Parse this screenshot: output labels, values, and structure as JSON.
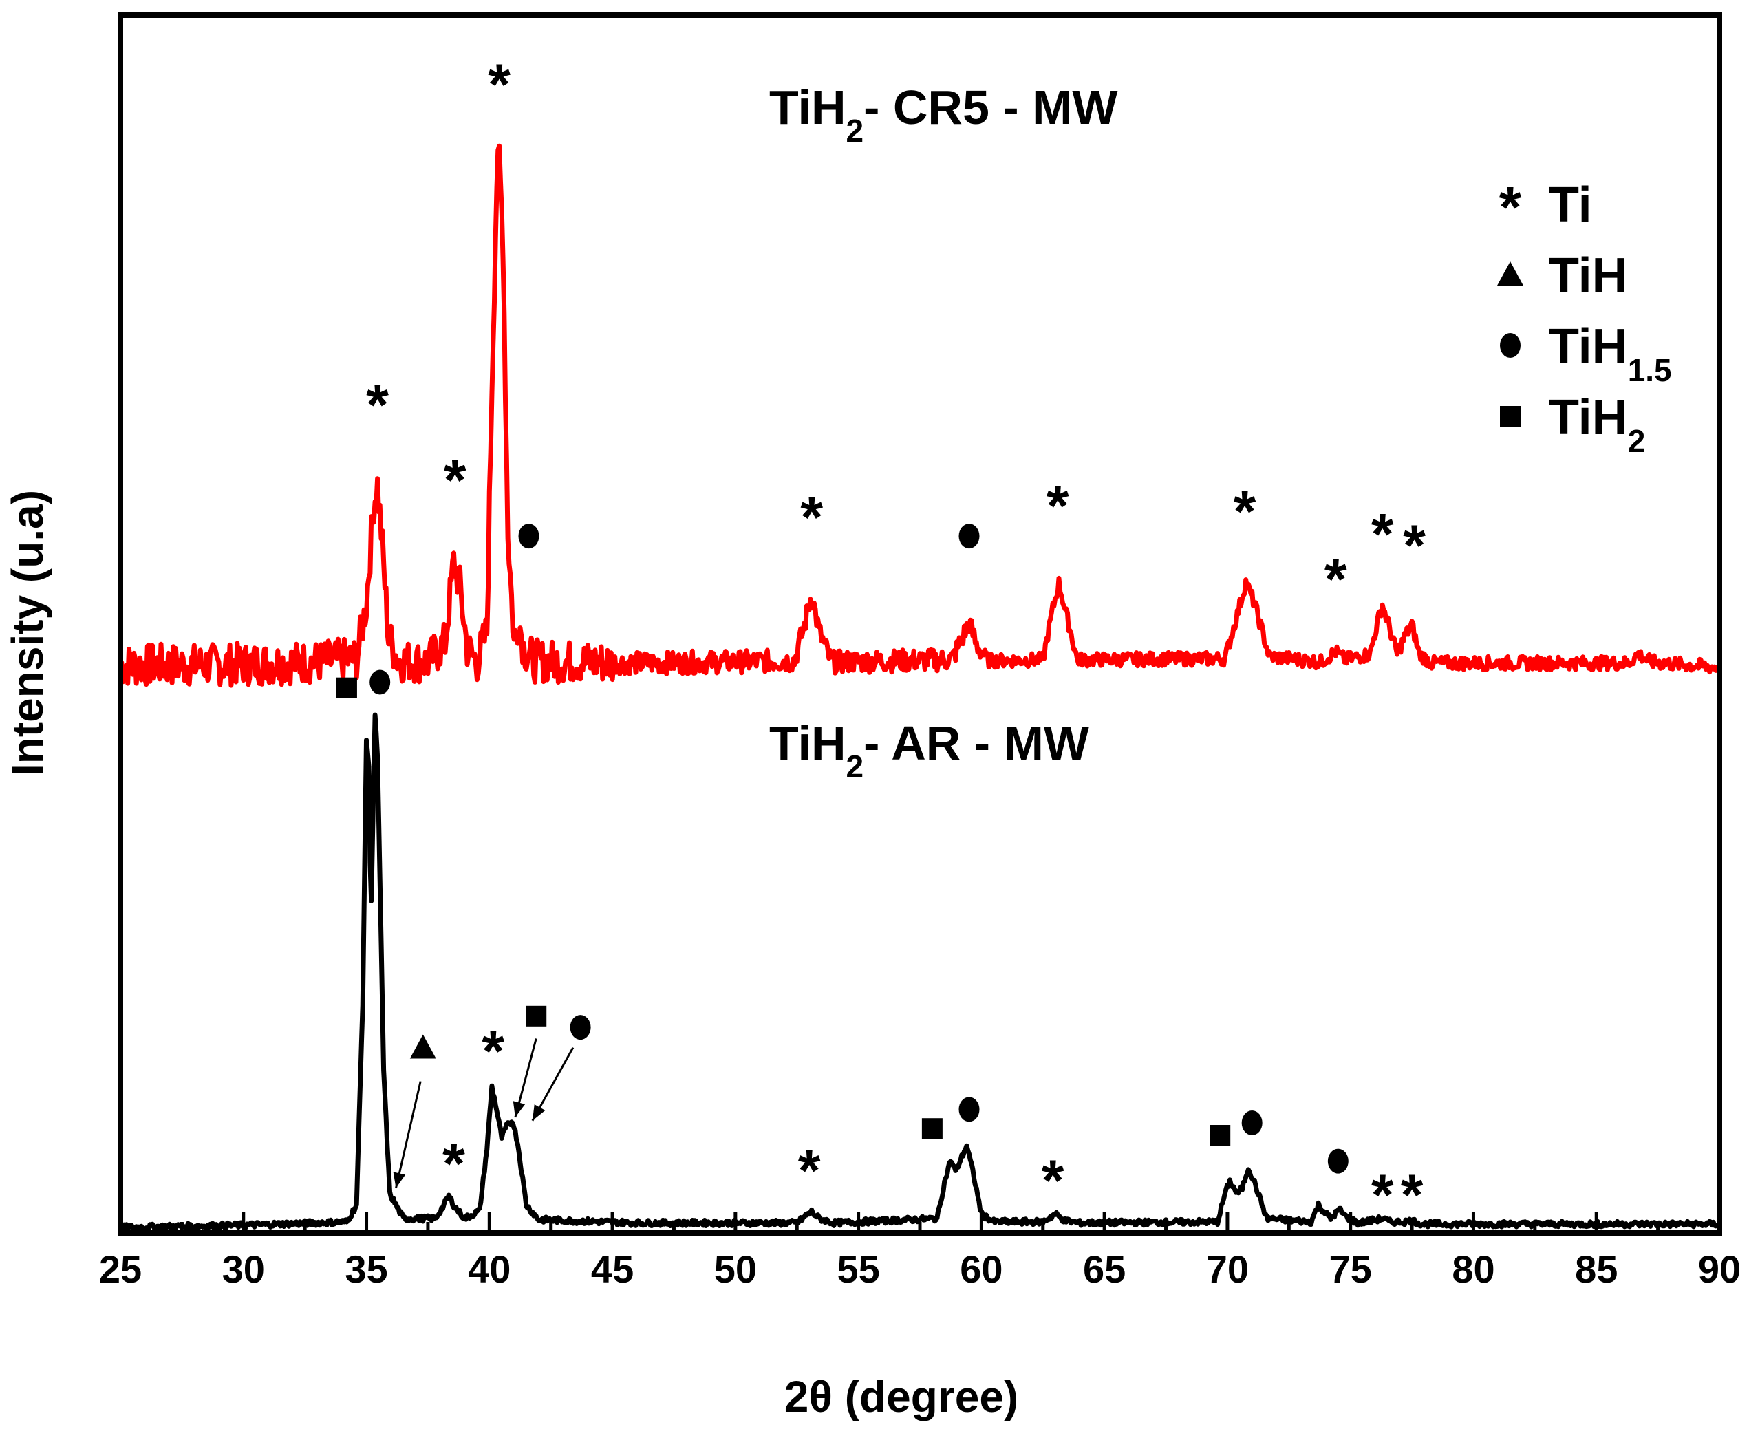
{
  "chart_data": {
    "type": "line",
    "title": "",
    "xlabel": "2θ (degree)",
    "ylabel": "Intensity (u.a)",
    "xlim": [
      25,
      90
    ],
    "ylim": [
      0,
      100
    ],
    "xticks": [
      "25",
      "30",
      "35",
      "40",
      "45",
      "50",
      "55",
      "60",
      "65",
      "70",
      "75",
      "80",
      "85",
      "90"
    ],
    "yticks_visible": false,
    "series": [
      {
        "name": "TiH2- CR5 - MW",
        "label_main": "TiH",
        "label_sub": "2",
        "label_rest": "- CR5 - MW",
        "color": "#ff0000",
        "noisy": true,
        "points": [
          [
            25,
            50.0
          ],
          [
            30,
            50.1
          ],
          [
            33,
            50.3
          ],
          [
            34.6,
            50.6
          ],
          [
            35.0,
            55.5
          ],
          [
            35.3,
            64.5
          ],
          [
            35.45,
            66.0
          ],
          [
            35.6,
            62.0
          ],
          [
            35.9,
            52.5
          ],
          [
            36.3,
            50.4
          ],
          [
            37.5,
            50.3
          ],
          [
            38.2,
            52.0
          ],
          [
            38.55,
            59.2
          ],
          [
            38.8,
            57.0
          ],
          [
            39.1,
            51.5
          ],
          [
            39.5,
            50.3
          ],
          [
            39.9,
            53.0
          ],
          [
            40.1,
            75.0
          ],
          [
            40.3,
            93.0
          ],
          [
            40.4,
            95.0
          ],
          [
            40.55,
            88.0
          ],
          [
            40.75,
            62.0
          ],
          [
            41.0,
            52.0
          ],
          [
            41.2,
            54.0
          ],
          [
            41.4,
            51.5
          ],
          [
            41.8,
            50.4
          ],
          [
            46,
            50.2
          ],
          [
            52.4,
            50.4
          ],
          [
            52.8,
            53.5
          ],
          [
            53.1,
            56.4
          ],
          [
            53.4,
            53.0
          ],
          [
            53.9,
            50.3
          ],
          [
            58.8,
            50.5
          ],
          [
            59.2,
            52.3
          ],
          [
            59.5,
            53.8
          ],
          [
            59.8,
            51.8
          ],
          [
            60.3,
            50.4
          ],
          [
            62.5,
            50.5
          ],
          [
            62.9,
            55.0
          ],
          [
            63.15,
            57.3
          ],
          [
            63.4,
            55.0
          ],
          [
            63.9,
            50.5
          ],
          [
            69.9,
            50.6
          ],
          [
            70.4,
            54.5
          ],
          [
            70.75,
            57.4
          ],
          [
            71.1,
            55.5
          ],
          [
            71.7,
            50.8
          ],
          [
            73.8,
            50.3
          ],
          [
            74.4,
            51.2
          ],
          [
            74.8,
            50.5
          ],
          [
            75.8,
            51.0
          ],
          [
            76.1,
            53.8
          ],
          [
            76.3,
            55.4
          ],
          [
            76.5,
            54.0
          ],
          [
            76.9,
            51.0
          ],
          [
            77.2,
            52.5
          ],
          [
            77.5,
            53.6
          ],
          [
            77.8,
            51.0
          ],
          [
            78.3,
            50.2
          ],
          [
            86.3,
            50.2
          ],
          [
            86.7,
            51.0
          ],
          [
            87.2,
            50.3
          ],
          [
            90,
            49.8
          ]
        ],
        "markers": [
          {
            "symbol": "star",
            "x": 35.45,
            "y": 73.5
          },
          {
            "symbol": "star",
            "x": 38.6,
            "y": 66.8
          },
          {
            "symbol": "star",
            "x": 40.4,
            "y": 102.0
          },
          {
            "symbol": "circle",
            "x": 41.6,
            "y": 61.5
          },
          {
            "symbol": "star",
            "x": 53.1,
            "y": 63.5
          },
          {
            "symbol": "circle",
            "x": 59.5,
            "y": 61.5
          },
          {
            "symbol": "star",
            "x": 63.1,
            "y": 64.5
          },
          {
            "symbol": "star",
            "x": 70.7,
            "y": 64.0
          },
          {
            "symbol": "star",
            "x": 74.4,
            "y": 58.0
          },
          {
            "symbol": "star",
            "x": 76.3,
            "y": 62.0
          },
          {
            "symbol": "star",
            "x": 77.6,
            "y": 61.0
          }
        ]
      },
      {
        "name": "TiH2- AR - MW",
        "label_main": "TiH",
        "label_sub": "2",
        "label_rest": "- AR - MW",
        "color": "#000000",
        "noisy": false,
        "points": [
          [
            25,
            0.0
          ],
          [
            30,
            0.2
          ],
          [
            34.2,
            0.5
          ],
          [
            34.6,
            2.0
          ],
          [
            34.85,
            20.0
          ],
          [
            35.0,
            43.5
          ],
          [
            35.1,
            41.0
          ],
          [
            35.18,
            27.0
          ],
          [
            35.25,
            35.0
          ],
          [
            35.35,
            45.5
          ],
          [
            35.45,
            42.0
          ],
          [
            35.7,
            14.0
          ],
          [
            35.95,
            3.0
          ],
          [
            36.5,
            0.8
          ],
          [
            37.8,
            0.8
          ],
          [
            38.1,
            1.8
          ],
          [
            38.35,
            2.8
          ],
          [
            38.6,
            1.8
          ],
          [
            39.0,
            0.8
          ],
          [
            39.6,
            1.5
          ],
          [
            39.9,
            7.0
          ],
          [
            40.1,
            12.5
          ],
          [
            40.25,
            11.0
          ],
          [
            40.5,
            8.0
          ],
          [
            40.7,
            9.0
          ],
          [
            40.95,
            9.5
          ],
          [
            41.15,
            7.5
          ],
          [
            41.5,
            2.0
          ],
          [
            42.0,
            0.7
          ],
          [
            46,
            0.4
          ],
          [
            52.5,
            0.4
          ],
          [
            52.9,
            1.1
          ],
          [
            53.1,
            1.4
          ],
          [
            53.4,
            0.8
          ],
          [
            54.0,
            0.4
          ],
          [
            58.2,
            0.8
          ],
          [
            58.5,
            4.0
          ],
          [
            58.75,
            6.0
          ],
          [
            58.95,
            5.0
          ],
          [
            59.15,
            6.0
          ],
          [
            59.4,
            7.3
          ],
          [
            59.65,
            5.0
          ],
          [
            60.0,
            1.2
          ],
          [
            60.5,
            0.5
          ],
          [
            62.5,
            0.5
          ],
          [
            63.0,
            1.2
          ],
          [
            63.4,
            0.6
          ],
          [
            64.0,
            0.4
          ],
          [
            69.6,
            0.5
          ],
          [
            69.9,
            3.0
          ],
          [
            70.1,
            4.1
          ],
          [
            70.4,
            3.0
          ],
          [
            70.6,
            3.5
          ],
          [
            70.85,
            5.3
          ],
          [
            71.1,
            4.0
          ],
          [
            71.6,
            0.8
          ],
          [
            73.4,
            0.5
          ],
          [
            73.7,
            2.0
          ],
          [
            73.85,
            1.6
          ],
          [
            74.2,
            0.8
          ],
          [
            74.55,
            1.6
          ],
          [
            74.85,
            0.9
          ],
          [
            75.3,
            0.4
          ],
          [
            76.1,
            0.7
          ],
          [
            76.3,
            0.8
          ],
          [
            76.6,
            0.5
          ],
          [
            77.2,
            0.5
          ],
          [
            77.5,
            0.6
          ],
          [
            77.9,
            0.3
          ],
          [
            90,
            0.3
          ]
        ],
        "markers": [
          {
            "symbol": "square",
            "x": 34.2,
            "y": 48.0
          },
          {
            "symbol": "circle",
            "x": 35.55,
            "y": 48.5
          },
          {
            "symbol": "triangle",
            "x": 37.3,
            "y": 16.0
          },
          {
            "symbol": "star",
            "x": 38.55,
            "y": 6.0
          },
          {
            "symbol": "star",
            "x": 40.15,
            "y": 16.0
          },
          {
            "symbol": "square",
            "x": 41.9,
            "y": 18.8
          },
          {
            "symbol": "circle",
            "x": 43.7,
            "y": 17.8
          },
          {
            "symbol": "star",
            "x": 53.0,
            "y": 5.4
          },
          {
            "symbol": "square",
            "x": 58.0,
            "y": 8.8
          },
          {
            "symbol": "circle",
            "x": 59.5,
            "y": 10.5
          },
          {
            "symbol": "star",
            "x": 62.9,
            "y": 4.5
          },
          {
            "symbol": "square",
            "x": 69.7,
            "y": 8.2
          },
          {
            "symbol": "circle",
            "x": 71.0,
            "y": 9.3
          },
          {
            "symbol": "circle",
            "x": 74.5,
            "y": 5.9
          },
          {
            "symbol": "star",
            "x": 76.3,
            "y": 3.2
          },
          {
            "symbol": "star",
            "x": 77.5,
            "y": 3.2
          }
        ],
        "arrows": [
          {
            "from": [
              37.2,
              13.0
            ],
            "to": [
              36.2,
              3.5
            ]
          },
          {
            "from": [
              41.9,
              16.8
            ],
            "to": [
              41.05,
              9.8
            ]
          },
          {
            "from": [
              43.4,
              16.0
            ],
            "to": [
              41.75,
              9.5
            ]
          }
        ]
      }
    ],
    "legend": {
      "position": "top-right",
      "entries": [
        {
          "symbol": "star",
          "main": "Ti",
          "sub": ""
        },
        {
          "symbol": "triangle",
          "main": "TiH",
          "sub": ""
        },
        {
          "symbol": "circle",
          "main": "TiH",
          "sub": "1.5"
        },
        {
          "symbol": "square",
          "main": "TiH",
          "sub": "2"
        }
      ]
    }
  }
}
